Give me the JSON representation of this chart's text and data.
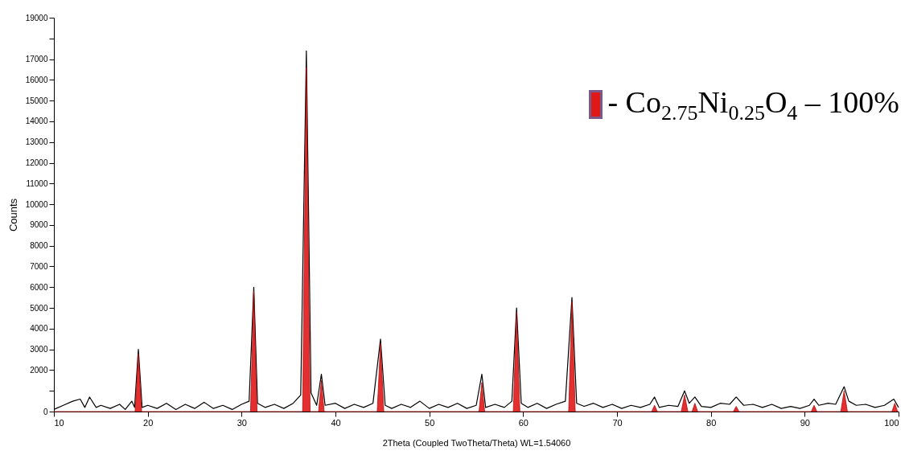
{
  "chart_data": {
    "type": "line",
    "xlabel": "2Theta (Coupled TwoTheta/Theta) WL=1.54060",
    "ylabel": "Counts",
    "xlim": [
      10,
      100
    ],
    "xticks": [
      10,
      20,
      30,
      40,
      50,
      60,
      70,
      80,
      90,
      100
    ],
    "ylim": [
      0,
      19000
    ],
    "yticks": [
      0,
      {
        "value": 1000,
        "label": null
      },
      2000,
      3000,
      4000,
      5000,
      6000,
      7000,
      8000,
      9000,
      10000,
      11000,
      12000,
      13000,
      14000,
      15000,
      16000,
      17000,
      {
        "value": 18000,
        "label": null
      },
      19000
    ],
    "grid": false,
    "legend": "top right",
    "marker": "none",
    "series": [
      {
        "type": "line",
        "color": "#000000",
        "x": [
          10,
          11,
          12,
          12.8,
          13.3,
          13.8,
          14.5,
          15,
          16,
          17,
          17.6,
          18.3,
          18.6,
          19.0,
          19.4,
          20,
          21,
          22,
          23,
          24,
          25,
          26,
          27,
          28,
          29,
          30,
          30.8,
          31.3,
          31.7,
          32.5,
          33.5,
          34.5,
          35.5,
          36.3,
          36.9,
          37.4,
          38,
          38.5,
          38.9,
          40,
          41,
          42,
          43,
          44,
          44.8,
          45.3,
          46,
          47,
          48,
          49,
          50,
          51,
          52,
          53,
          54,
          55,
          55.6,
          56,
          57,
          58,
          58.8,
          59.3,
          59.8,
          60.5,
          61.5,
          62.5,
          63.5,
          64.5,
          65.2,
          65.7,
          66.5,
          67.5,
          68.5,
          69.5,
          70.5,
          71.5,
          72.5,
          73.5,
          74,
          74.5,
          75.5,
          76.5,
          77.2,
          77.7,
          78.3,
          79,
          80,
          81,
          82,
          82.7,
          83.5,
          84.5,
          85.5,
          86.5,
          87.5,
          88.5,
          89.5,
          90.5,
          91,
          91.5,
          92.5,
          93.3,
          94.2,
          94.7,
          95.5,
          96.5,
          97.5,
          98.5,
          99.5,
          100
        ],
        "values": [
          100,
          300,
          500,
          600,
          200,
          700,
          200,
          300,
          150,
          350,
          100,
          500,
          200,
          3000,
          200,
          300,
          150,
          400,
          100,
          350,
          150,
          450,
          150,
          300,
          100,
          350,
          500,
          6000,
          400,
          200,
          350,
          150,
          400,
          800,
          17400,
          900,
          300,
          1800,
          300,
          400,
          150,
          350,
          200,
          400,
          3500,
          300,
          150,
          350,
          200,
          500,
          150,
          350,
          200,
          400,
          150,
          300,
          1800,
          200,
          350,
          200,
          500,
          5000,
          400,
          200,
          400,
          150,
          350,
          500,
          5500,
          400,
          250,
          400,
          200,
          350,
          150,
          300,
          200,
          350,
          700,
          200,
          300,
          250,
          1000,
          400,
          700,
          250,
          200,
          400,
          350,
          700,
          300,
          350,
          200,
          350,
          150,
          250,
          150,
          300,
          600,
          300,
          400,
          350,
          1200,
          500,
          300,
          350,
          200,
          300,
          600,
          200
        ]
      },
      {
        "type": "area",
        "name": "- Co$_{2.75}$Ni$_{0.25}$O$_{4}$ – 100%",
        "color": "#e01818",
        "x": [
          10,
          18.65,
          19.0,
          19.35,
          30.95,
          31.3,
          31.65,
          36.5,
          36.9,
          37.3,
          38.2,
          38.5,
          38.8,
          44.45,
          44.8,
          45.15,
          55.3,
          55.6,
          55.9,
          58.95,
          59.3,
          59.65,
          64.85,
          65.2,
          65.55,
          73.7,
          74,
          74.3,
          76.85,
          77.2,
          77.55,
          78.0,
          78.3,
          78.6,
          82.4,
          82.7,
          83.0,
          90.7,
          91,
          91.3,
          93.85,
          94.2,
          94.55,
          99.3,
          99.6,
          99.9,
          100
        ],
        "values": [
          0,
          0,
          2800,
          0,
          0,
          5800,
          0,
          0,
          16600,
          0,
          0,
          1500,
          0,
          0,
          3300,
          0,
          0,
          1400,
          0,
          0,
          4800,
          0,
          0,
          5300,
          0,
          0,
          300,
          0,
          0,
          800,
          0,
          0,
          400,
          0,
          0,
          250,
          0,
          0,
          300,
          0,
          0,
          1000,
          0,
          0,
          400,
          0,
          0
        ]
      }
    ]
  }
}
